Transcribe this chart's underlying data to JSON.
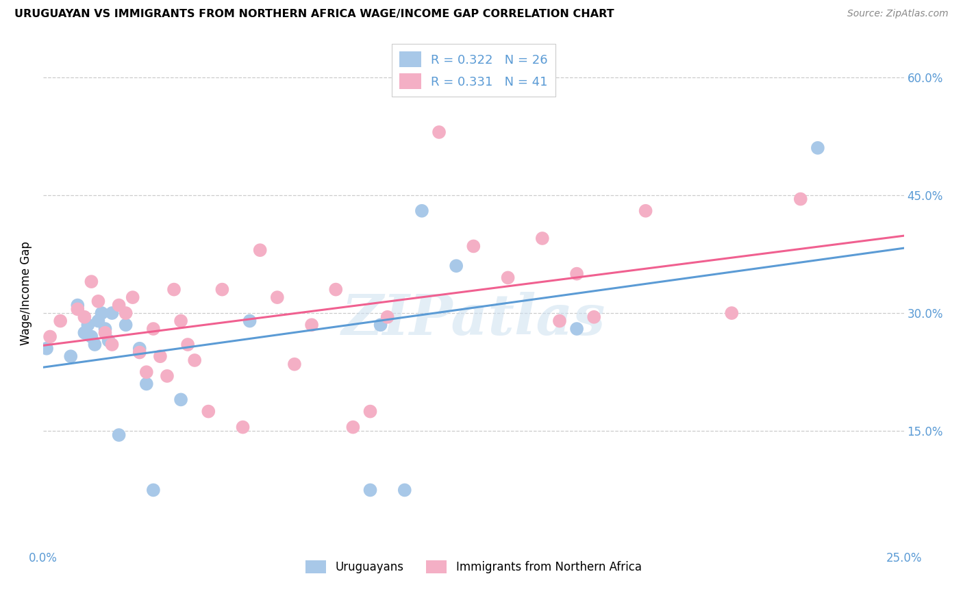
{
  "title": "URUGUAYAN VS IMMIGRANTS FROM NORTHERN AFRICA WAGE/INCOME GAP CORRELATION CHART",
  "source": "Source: ZipAtlas.com",
  "ylabel": "Wage/Income Gap",
  "xlim": [
    0.0,
    0.25
  ],
  "ylim": [
    0.0,
    0.65
  ],
  "yticks": [
    0.15,
    0.3,
    0.45,
    0.6
  ],
  "xtick_positions": [
    0.0,
    0.05,
    0.1,
    0.15,
    0.2,
    0.25
  ],
  "xticklabels": [
    "0.0%",
    "",
    "",
    "",
    "",
    "25.0%"
  ],
  "yticklabels_right": [
    "15.0%",
    "30.0%",
    "45.0%",
    "60.0%"
  ],
  "blue_color": "#a8c8e8",
  "pink_color": "#f4afc5",
  "blue_line_color": "#5b9bd5",
  "pink_line_color": "#f06090",
  "tick_label_color": "#5b9bd5",
  "R_blue": 0.322,
  "N_blue": 26,
  "R_pink": 0.331,
  "N_pink": 41,
  "watermark": "ZIPatlas",
  "uruguayan_x": [
    0.001,
    0.008,
    0.01,
    0.012,
    0.013,
    0.014,
    0.015,
    0.016,
    0.017,
    0.018,
    0.019,
    0.02,
    0.022,
    0.024,
    0.028,
    0.03,
    0.032,
    0.06,
    0.095,
    0.105,
    0.12,
    0.098,
    0.155,
    0.04,
    0.11,
    0.225
  ],
  "uruguayan_y": [
    0.255,
    0.245,
    0.31,
    0.275,
    0.285,
    0.27,
    0.26,
    0.29,
    0.3,
    0.28,
    0.265,
    0.3,
    0.145,
    0.285,
    0.255,
    0.21,
    0.075,
    0.29,
    0.075,
    0.075,
    0.36,
    0.285,
    0.28,
    0.19,
    0.43,
    0.51
  ],
  "northern_africa_x": [
    0.002,
    0.005,
    0.01,
    0.012,
    0.014,
    0.016,
    0.018,
    0.02,
    0.022,
    0.024,
    0.026,
    0.028,
    0.03,
    0.032,
    0.034,
    0.036,
    0.038,
    0.04,
    0.042,
    0.044,
    0.048,
    0.052,
    0.058,
    0.063,
    0.068,
    0.073,
    0.078,
    0.085,
    0.09,
    0.095,
    0.1,
    0.115,
    0.125,
    0.135,
    0.145,
    0.15,
    0.155,
    0.16,
    0.175,
    0.2,
    0.22
  ],
  "northern_africa_y": [
    0.27,
    0.29,
    0.305,
    0.295,
    0.34,
    0.315,
    0.275,
    0.26,
    0.31,
    0.3,
    0.32,
    0.25,
    0.225,
    0.28,
    0.245,
    0.22,
    0.33,
    0.29,
    0.26,
    0.24,
    0.175,
    0.33,
    0.155,
    0.38,
    0.32,
    0.235,
    0.285,
    0.33,
    0.155,
    0.175,
    0.295,
    0.53,
    0.385,
    0.345,
    0.395,
    0.29,
    0.35,
    0.295,
    0.43,
    0.3,
    0.445
  ]
}
